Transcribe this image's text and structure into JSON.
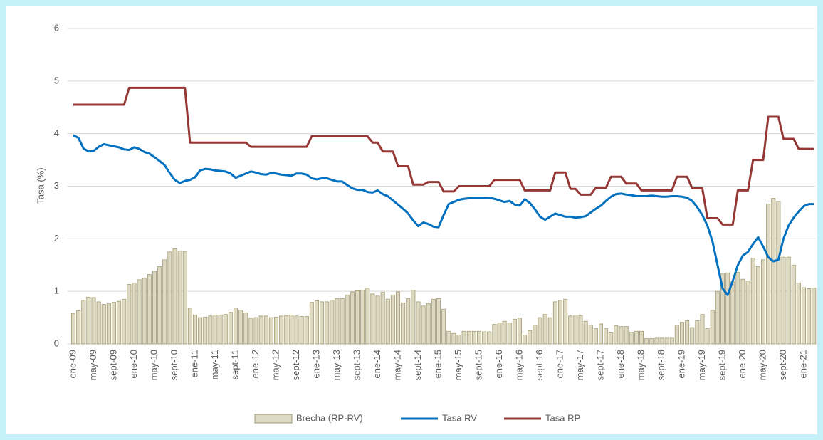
{
  "chart_data": {
    "type": "combo",
    "y_label": "Tasa (%)",
    "ylim": [
      0,
      6
    ],
    "yticks": [
      0,
      1,
      2,
      3,
      4,
      5,
      6
    ],
    "grid": true,
    "legend": "bottom",
    "categories": [
      "ene-09",
      null,
      null,
      null,
      "may-09",
      null,
      null,
      null,
      "sept-09",
      null,
      null,
      null,
      "ene-10",
      null,
      null,
      null,
      "may-10",
      null,
      null,
      null,
      "sept-10",
      null,
      null,
      null,
      "ene-11",
      null,
      null,
      null,
      "may-11",
      null,
      null,
      null,
      "sept-11",
      null,
      null,
      null,
      "ene-12",
      null,
      null,
      null,
      "may-12",
      null,
      null,
      null,
      "sept-12",
      null,
      null,
      null,
      "ene-13",
      null,
      null,
      null,
      "may-13",
      null,
      null,
      null,
      "sept-13",
      null,
      null,
      null,
      "ene-14",
      null,
      null,
      null,
      "may-14",
      null,
      null,
      null,
      "sept-14",
      null,
      null,
      null,
      "ene-15",
      null,
      null,
      null,
      "may-15",
      null,
      null,
      null,
      "sept-15",
      null,
      null,
      null,
      "ene-16",
      null,
      null,
      null,
      "may-16",
      null,
      null,
      null,
      "sept-16",
      null,
      null,
      null,
      "ene-17",
      null,
      null,
      null,
      "may-17",
      null,
      null,
      null,
      "sept-17",
      null,
      null,
      null,
      "ene-18",
      null,
      null,
      null,
      "may-18",
      null,
      null,
      null,
      "sept-18",
      null,
      null,
      null,
      "ene-19",
      null,
      null,
      null,
      "may-19",
      null,
      null,
      null,
      "sept-19",
      null,
      null,
      null,
      "ene-20",
      null,
      null,
      null,
      "may-20",
      null,
      null,
      null,
      "sept-20",
      null,
      null,
      null,
      "ene-21",
      null,
      null
    ],
    "series": [
      {
        "name": "Brecha (RP-RV)",
        "type": "bar",
        "color": "#ddd9c3",
        "stroke": "#a59c72",
        "values": [
          0.58,
          0.63,
          0.83,
          0.89,
          0.88,
          0.8,
          0.75,
          0.77,
          0.79,
          0.81,
          0.85,
          1.13,
          1.16,
          1.22,
          1.25,
          1.32,
          1.38,
          1.47,
          1.6,
          1.75,
          1.81,
          1.77,
          1.76,
          0.68,
          0.55,
          0.5,
          0.51,
          0.53,
          0.55,
          0.55,
          0.56,
          0.6,
          0.68,
          0.64,
          0.59,
          0.49,
          0.5,
          0.53,
          0.53,
          0.5,
          0.51,
          0.53,
          0.54,
          0.55,
          0.53,
          0.52,
          0.52,
          0.79,
          0.82,
          0.8,
          0.8,
          0.83,
          0.86,
          0.86,
          0.93,
          0.99,
          1.01,
          1.02,
          1.06,
          0.95,
          0.91,
          0.98,
          0.85,
          0.93,
          0.99,
          0.78,
          0.86,
          1.02,
          0.8,
          0.72,
          0.77,
          0.85,
          0.86,
          0.66,
          0.24,
          0.2,
          0.17,
          0.24,
          0.24,
          0.24,
          0.24,
          0.23,
          0.23,
          0.37,
          0.4,
          0.43,
          0.4,
          0.47,
          0.49,
          0.17,
          0.25,
          0.36,
          0.5,
          0.56,
          0.5,
          0.8,
          0.83,
          0.85,
          0.53,
          0.55,
          0.54,
          0.43,
          0.36,
          0.29,
          0.38,
          0.29,
          0.21,
          0.35,
          0.33,
          0.33,
          0.22,
          0.24,
          0.24,
          0.1,
          0.1,
          0.11,
          0.11,
          0.11,
          0.11,
          0.36,
          0.41,
          0.44,
          0.31,
          0.44,
          0.56,
          0.29,
          0.64,
          1.0,
          1.33,
          1.35,
          1.18,
          1.36,
          1.23,
          1.2,
          1.63,
          1.47,
          1.6,
          2.66,
          2.77,
          2.71,
          1.65,
          1.65,
          1.5,
          1.16,
          1.07,
          1.05,
          1.06
        ]
      },
      {
        "name": "Tasa RV",
        "type": "line",
        "color": "#0070c0",
        "values": [
          3.97,
          3.92,
          3.72,
          3.66,
          3.67,
          3.75,
          3.8,
          3.78,
          3.76,
          3.74,
          3.7,
          3.69,
          3.74,
          3.71,
          3.65,
          3.62,
          3.55,
          3.48,
          3.4,
          3.25,
          3.12,
          3.06,
          3.1,
          3.12,
          3.17,
          3.3,
          3.33,
          3.32,
          3.3,
          3.29,
          3.28,
          3.24,
          3.16,
          3.2,
          3.24,
          3.28,
          3.26,
          3.23,
          3.22,
          3.25,
          3.24,
          3.22,
          3.21,
          3.2,
          3.24,
          3.24,
          3.22,
          3.15,
          3.13,
          3.15,
          3.15,
          3.12,
          3.09,
          3.09,
          3.02,
          2.96,
          2.93,
          2.93,
          2.89,
          2.88,
          2.92,
          2.85,
          2.81,
          2.73,
          2.65,
          2.57,
          2.48,
          2.35,
          2.24,
          2.31,
          2.28,
          2.23,
          2.22,
          2.45,
          2.66,
          2.7,
          2.74,
          2.76,
          2.77,
          2.77,
          2.77,
          2.77,
          2.78,
          2.76,
          2.73,
          2.7,
          2.72,
          2.65,
          2.63,
          2.75,
          2.68,
          2.56,
          2.42,
          2.36,
          2.42,
          2.48,
          2.45,
          2.42,
          2.42,
          2.4,
          2.41,
          2.43,
          2.5,
          2.57,
          2.63,
          2.72,
          2.8,
          2.85,
          2.86,
          2.84,
          2.83,
          2.81,
          2.81,
          2.81,
          2.82,
          2.81,
          2.8,
          2.8,
          2.81,
          2.81,
          2.8,
          2.78,
          2.72,
          2.6,
          2.45,
          2.25,
          1.95,
          1.5,
          1.05,
          0.93,
          1.2,
          1.5,
          1.68,
          1.75,
          1.9,
          2.03,
          1.85,
          1.65,
          1.57,
          1.6,
          2.0,
          2.25,
          2.4,
          2.52,
          2.62,
          2.66,
          2.66
        ]
      },
      {
        "name": "Tasa RP",
        "type": "line",
        "color": "#953735",
        "values": [
          4.55,
          4.55,
          4.55,
          4.55,
          4.55,
          4.55,
          4.55,
          4.55,
          4.55,
          4.55,
          4.55,
          4.87,
          4.87,
          4.87,
          4.87,
          4.87,
          4.87,
          4.87,
          4.87,
          4.87,
          4.87,
          4.87,
          4.87,
          3.83,
          3.83,
          3.83,
          3.83,
          3.83,
          3.83,
          3.83,
          3.83,
          3.83,
          3.83,
          3.83,
          3.83,
          3.75,
          3.75,
          3.75,
          3.75,
          3.75,
          3.75,
          3.75,
          3.75,
          3.75,
          3.75,
          3.75,
          3.75,
          3.95,
          3.95,
          3.95,
          3.95,
          3.95,
          3.95,
          3.95,
          3.95,
          3.95,
          3.95,
          3.95,
          3.95,
          3.83,
          3.83,
          3.66,
          3.66,
          3.66,
          3.38,
          3.38,
          3.38,
          3.03,
          3.03,
          3.03,
          3.08,
          3.08,
          3.08,
          2.9,
          2.9,
          2.9,
          3.0,
          3.0,
          3.0,
          3.0,
          3.0,
          3.0,
          3.0,
          3.12,
          3.12,
          3.12,
          3.12,
          3.12,
          3.12,
          2.92,
          2.92,
          2.92,
          2.92,
          2.92,
          2.92,
          3.26,
          3.26,
          3.26,
          2.95,
          2.95,
          2.84,
          2.84,
          2.84,
          2.97,
          2.97,
          2.97,
          3.18,
          3.18,
          3.18,
          3.05,
          3.05,
          3.05,
          2.92,
          2.92,
          2.92,
          2.92,
          2.92,
          2.92,
          2.92,
          3.18,
          3.18,
          3.18,
          2.96,
          2.96,
          2.96,
          2.39,
          2.39,
          2.39,
          2.27,
          2.27,
          2.27,
          2.92,
          2.92,
          2.92,
          3.5,
          3.5,
          3.5,
          4.32,
          4.32,
          4.32,
          3.9,
          3.9,
          3.9,
          3.71,
          3.71,
          3.71,
          3.71
        ]
      }
    ]
  }
}
